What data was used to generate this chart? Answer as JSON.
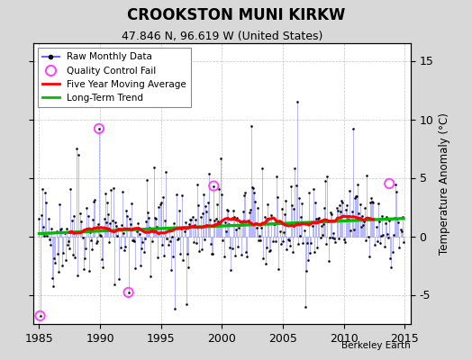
{
  "title": "CROOKSTON MUNI KIRKW",
  "subtitle": "47.846 N, 96.619 W (United States)",
  "ylabel": "Temperature Anomaly (°C)",
  "watermark": "Berkeley Earth",
  "xlim": [
    1984.5,
    2015.5
  ],
  "ylim": [
    -7.5,
    16.5
  ],
  "yticks_right": [
    -5,
    0,
    5,
    10,
    15
  ],
  "xticks": [
    1985,
    1990,
    1995,
    2000,
    2005,
    2010,
    2015
  ],
  "bg_color": "#d8d8d8",
  "plot_bg_color": "#ffffff",
  "raw_line_color": "#6666ff",
  "raw_marker_color": "#000000",
  "qc_fail_color": "#ff44ff",
  "moving_avg_color": "#ff0000",
  "trend_color": "#00bb00",
  "seed": 42
}
